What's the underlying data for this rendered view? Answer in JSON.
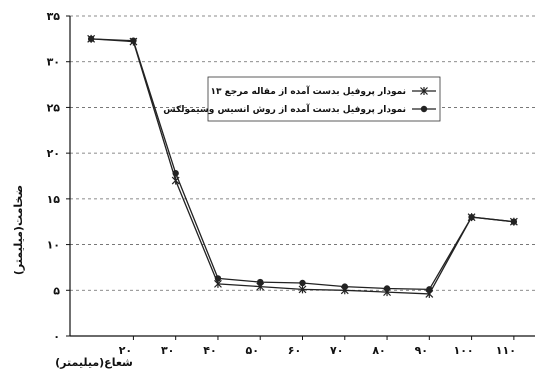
{
  "chart_data": {
    "type": "line",
    "title": "",
    "xlabel": "شعاع(میلیمتر)",
    "ylabel": "ضخامت(میلیمتر)",
    "x_ticks": [
      "۲۰",
      "۳۰",
      "۴۰",
      "۵۰",
      "۶۰",
      "۷۰",
      "۸۰",
      "۹۰",
      "۱۰۰",
      "۱۱۰"
    ],
    "y_ticks": [
      "۰",
      "۵",
      "۱۰",
      "۱۵",
      "۲۰",
      "۲۵",
      "۳۰",
      "۳۵"
    ],
    "ylim": [
      0,
      35
    ],
    "grid": "horizontal-dashed",
    "legend_position": "top-right",
    "series": [
      {
        "name": "نمودار پروفیل بدست آمده از مقاله مرجع ۱۳",
        "marker": "star",
        "color": "#222222",
        "points": [
          {
            "x": 10,
            "y": 32.5
          },
          {
            "x": 20,
            "y": 32.2
          },
          {
            "x": 30,
            "y": 17.0
          },
          {
            "x": 40,
            "y": 5.7
          },
          {
            "x": 50,
            "y": 5.4
          },
          {
            "x": 60,
            "y": 5.1
          },
          {
            "x": 70,
            "y": 5.0
          },
          {
            "x": 80,
            "y": 4.8
          },
          {
            "x": 90,
            "y": 4.6
          },
          {
            "x": 100,
            "y": 13.0
          },
          {
            "x": 110,
            "y": 12.5
          }
        ]
      },
      {
        "name": "نمودار پروفیل بدست آمده از روش انسیس وسیمولکس",
        "marker": "circle",
        "color": "#222222",
        "points": [
          {
            "x": 10,
            "y": 32.5
          },
          {
            "x": 20,
            "y": 32.3
          },
          {
            "x": 30,
            "y": 17.8
          },
          {
            "x": 40,
            "y": 6.3
          },
          {
            "x": 50,
            "y": 5.9
          },
          {
            "x": 60,
            "y": 5.8
          },
          {
            "x": 70,
            "y": 5.4
          },
          {
            "x": 80,
            "y": 5.2
          },
          {
            "x": 90,
            "y": 5.1
          },
          {
            "x": 100,
            "y": 13.0
          },
          {
            "x": 110,
            "y": 12.5
          }
        ]
      }
    ]
  }
}
